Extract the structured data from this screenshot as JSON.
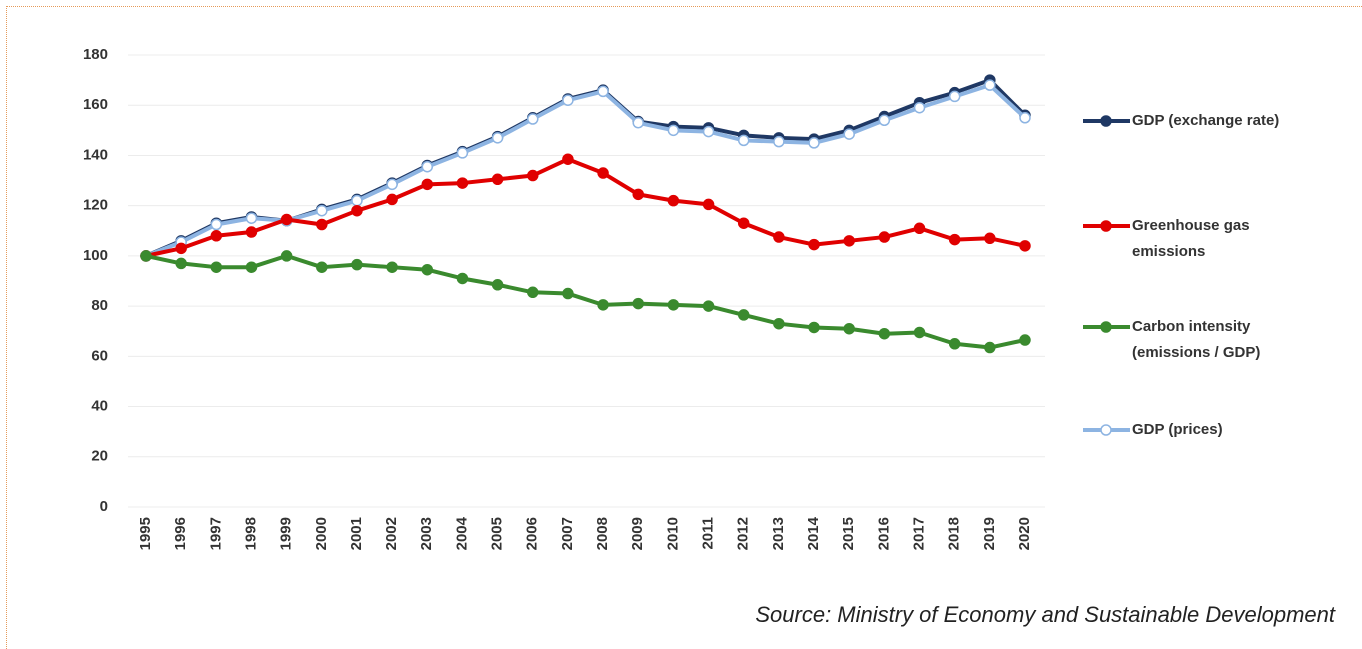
{
  "chart_data": {
    "type": "line",
    "categories": [
      "1995",
      "1996",
      "1997",
      "1998",
      "1999",
      "2000",
      "2001",
      "2002",
      "2003",
      "2004",
      "2005",
      "2006",
      "2007",
      "2008",
      "2009",
      "2010",
      "2011",
      "2012",
      "2013",
      "2014",
      "2015",
      "2016",
      "2017",
      "2018",
      "2019",
      "2020"
    ],
    "series": [
      {
        "name": "GDP (exchange rate)",
        "color": "#1f3864",
        "marker": "filled",
        "values": [
          100,
          106,
          113,
          115.5,
          114,
          118.5,
          122.5,
          129,
          136,
          141.5,
          147.5,
          155,
          162.5,
          166,
          153.5,
          151.5,
          151,
          148,
          147,
          146.5,
          150,
          155.5,
          161,
          165,
          170,
          156
        ]
      },
      {
        "name": "Greenhouse gas emissions",
        "color": "#e00000",
        "marker": "filled",
        "values": [
          100,
          103,
          108,
          109.5,
          114.5,
          112.5,
          118,
          122.5,
          128.5,
          129,
          130.5,
          132,
          138.5,
          133,
          124.5,
          122,
          120.5,
          113,
          107.5,
          104.5,
          106,
          107.5,
          111,
          106.5,
          107,
          104
        ]
      },
      {
        "name": "Carbon intensity (emissions / GDP)",
        "color": "#3a8a2e",
        "marker": "filled",
        "values": [
          100,
          97,
          95.5,
          95.5,
          100,
          95.5,
          96.5,
          95.5,
          94.5,
          91,
          88.5,
          85.5,
          85,
          80.5,
          81,
          80.5,
          80,
          76.5,
          73,
          71.5,
          71,
          69,
          69.5,
          65,
          63.5,
          66.5
        ]
      },
      {
        "name": "GDP (prices)",
        "color": "#8db4e2",
        "marker": "hollow",
        "values": [
          100,
          105.5,
          112.5,
          115,
          114,
          118,
          122,
          128.5,
          135.5,
          141,
          147,
          154.5,
          162,
          165.5,
          153,
          150,
          149.5,
          146,
          145.5,
          145,
          148.5,
          154,
          159,
          163.5,
          168,
          155
        ]
      }
    ],
    "ylim": [
      0,
      180
    ],
    "yticks": [
      0,
      20,
      40,
      60,
      80,
      100,
      120,
      140,
      160,
      180
    ],
    "grid": true,
    "legend": "right",
    "source": "Source: Ministry of Economy and Sustainable Development"
  }
}
